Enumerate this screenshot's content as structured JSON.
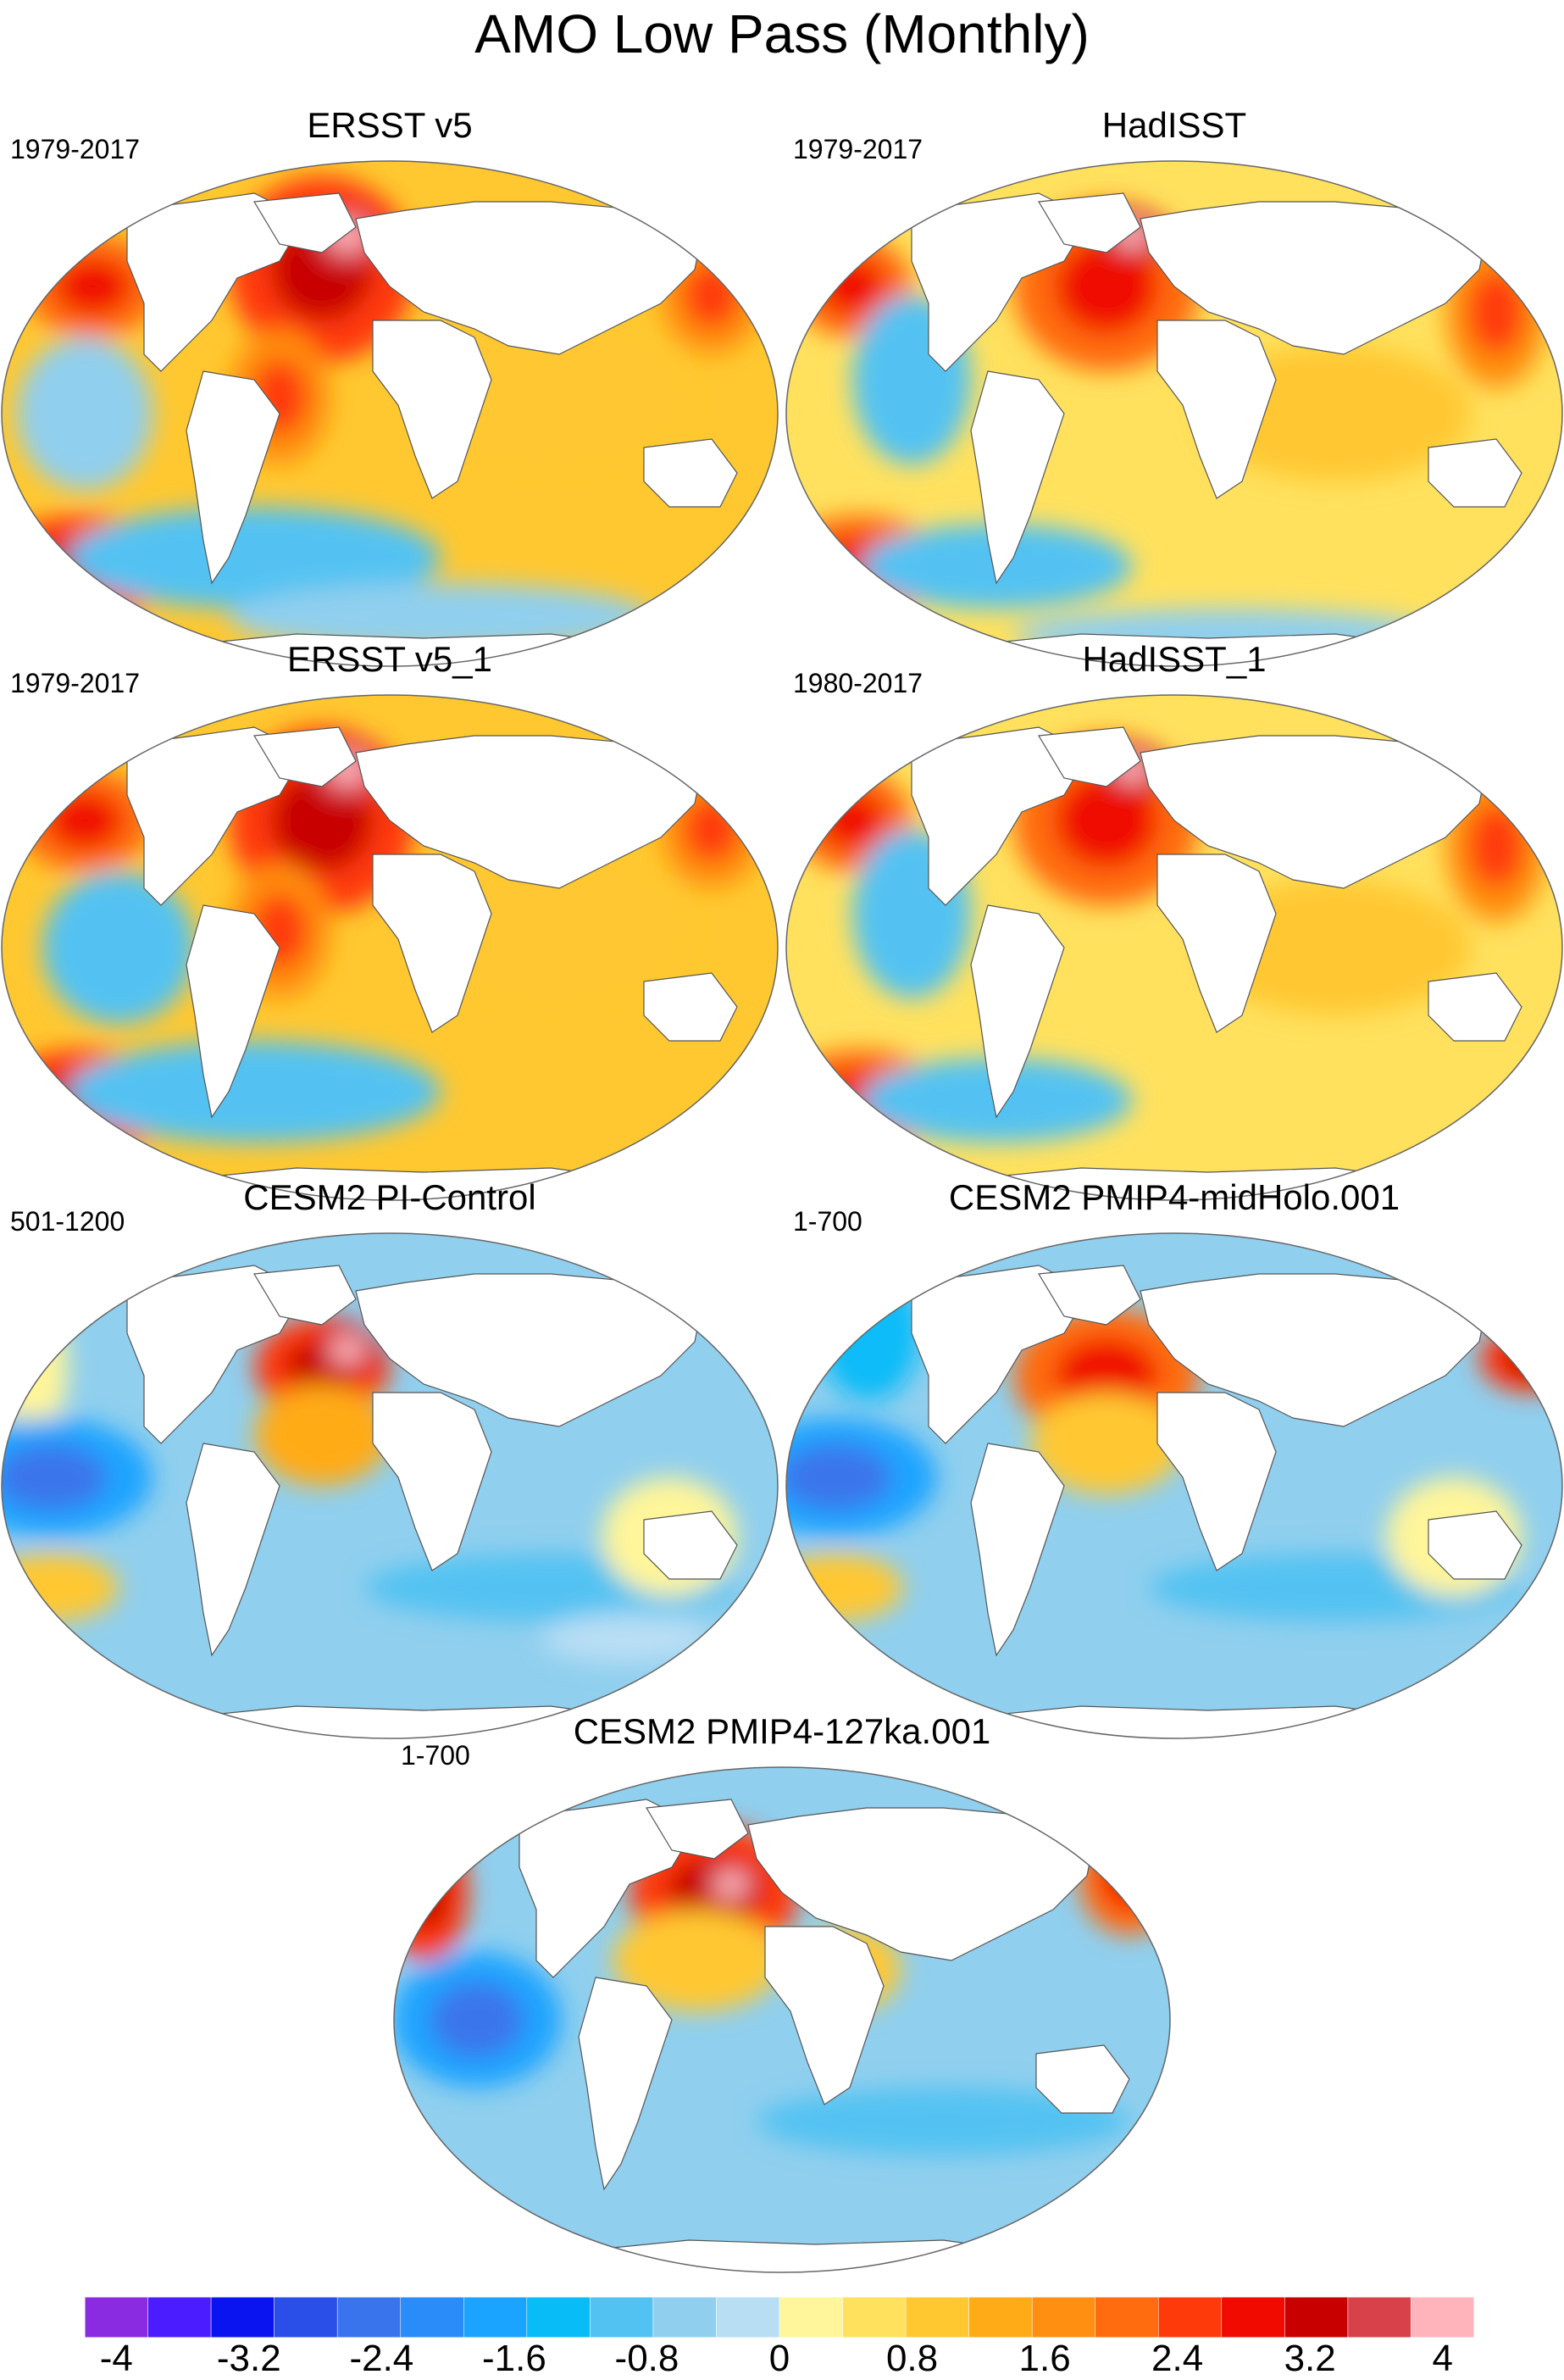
{
  "title": "AMO Low Pass (Monthly)",
  "chart_data": {
    "type": "heatmap",
    "title": "AMO Low Pass (Monthly)",
    "panels": [
      {
        "title": "ERSST v5",
        "period": "1979-2017"
      },
      {
        "title": "HadISST",
        "period": "1979-2017"
      },
      {
        "title": "ERSST v5_1",
        "period": "1979-2017"
      },
      {
        "title": "HadISST_1",
        "period": "1980-2017"
      },
      {
        "title": "CESM2 PI-Control",
        "period": "501-1200"
      },
      {
        "title": "CESM2 PMIP4-midHolo.001",
        "period": "1-700"
      },
      {
        "title": "CESM2 PMIP4-127ka.001",
        "period": "1-700"
      }
    ],
    "colorbar": {
      "levels": [
        -4,
        -3.6,
        -3.2,
        -2.8,
        -2.4,
        -2.0,
        -1.6,
        -1.2,
        -0.8,
        -0.4,
        0,
        0.4,
        0.8,
        1.2,
        1.6,
        2.0,
        2.4,
        2.8,
        3.2,
        3.6,
        4
      ],
      "tick_labels": [
        "-4",
        "-3.2",
        "-2.4",
        "-1.6",
        "-0.8",
        "0",
        "0.8",
        "1.6",
        "2.4",
        "3.2",
        "4"
      ],
      "tick_values": [
        -4,
        -3.2,
        -2.4,
        -1.6,
        -0.8,
        0,
        0.8,
        1.6,
        2.4,
        3.2,
        4
      ],
      "colors": [
        "#8a2be2",
        "#4b1cff",
        "#0a14f0",
        "#2a4ee8",
        "#3a74ec",
        "#2a8cf8",
        "#1aa4ff",
        "#08bcf8",
        "#52c2f2",
        "#90cfee",
        "#b8def4",
        "#fff59a",
        "#ffe15e",
        "#ffc830",
        "#ffab18",
        "#ff8f10",
        "#ff6c10",
        "#ff3a0a",
        "#f00a00",
        "#c80000",
        "#d8404a",
        "#ffb4bc"
      ],
      "range": [
        -4,
        4
      ]
    }
  }
}
